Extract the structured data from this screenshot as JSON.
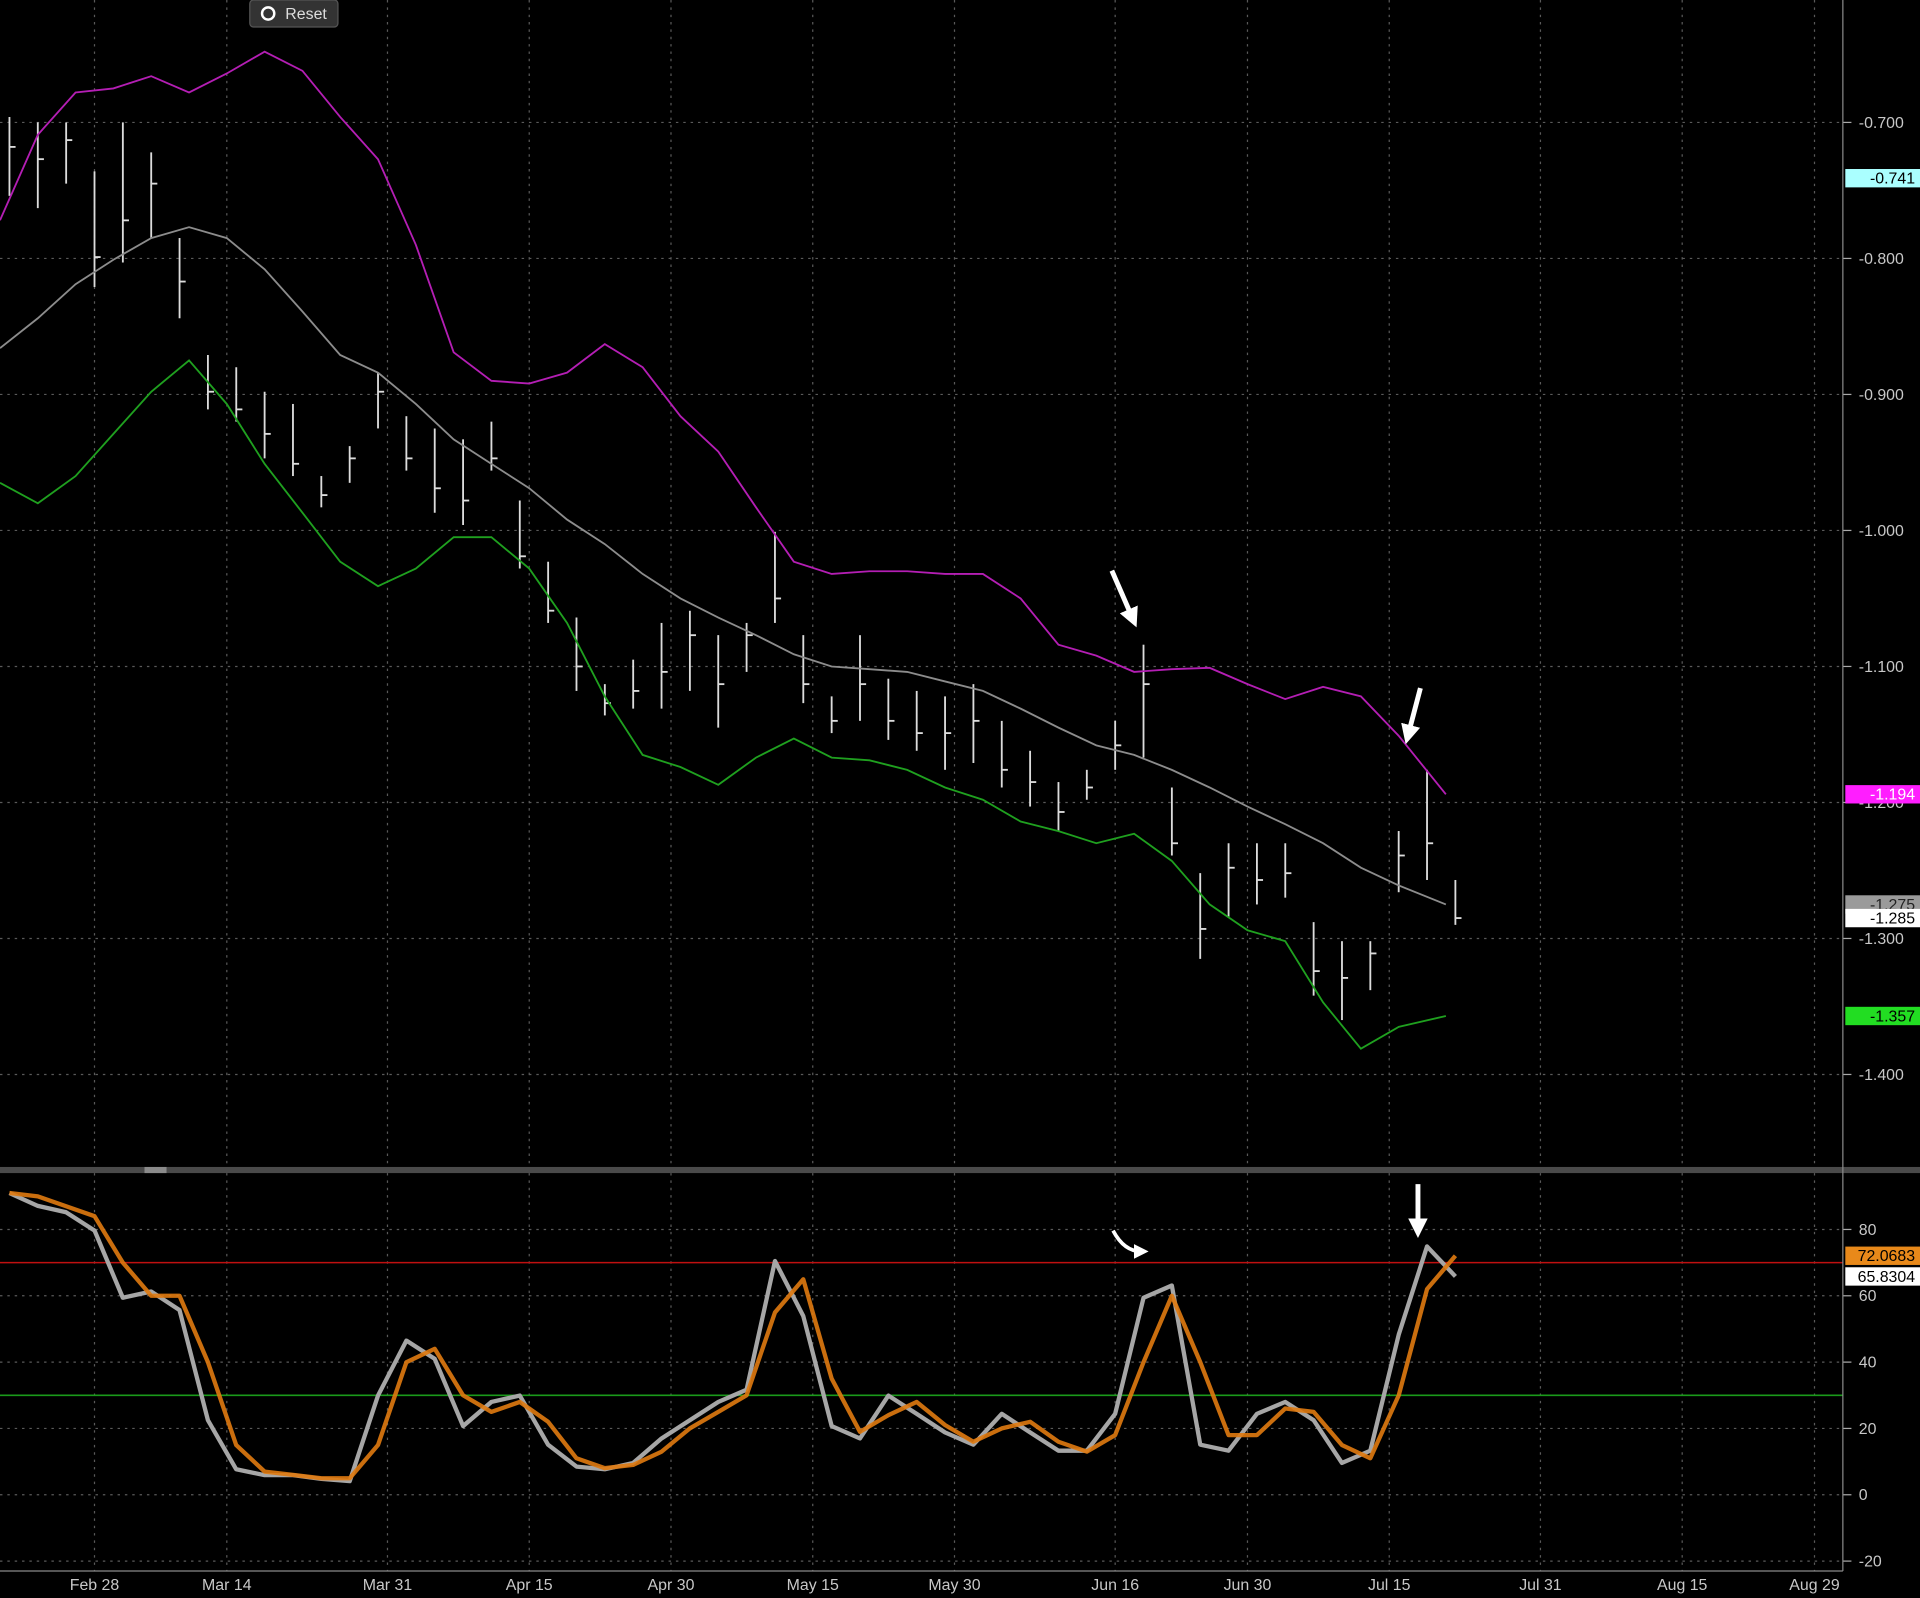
{
  "reset_button": "Reset",
  "chart_data": [
    {
      "type": "ohlc",
      "xlim": [
        "Feb 18",
        "Sep 1"
      ],
      "xticks": [
        "Feb 28",
        "Mar 14",
        "Mar 31",
        "Apr 15",
        "Apr 30",
        "May 15",
        "May 30",
        "Jun 16",
        "Jun 30",
        "Jul 15",
        "Jul 31",
        "Aug 15",
        "Aug 29"
      ],
      "ylim": [
        -1.468,
        -0.61
      ],
      "yticks": [
        {
          "value": -0.7,
          "label": "-0.700"
        },
        {
          "value": -0.8,
          "label": "-0.800"
        },
        {
          "value": -0.9,
          "label": "-0.900"
        },
        {
          "value": -1.0,
          "label": "-1.000"
        },
        {
          "value": -1.1,
          "label": "-1.100"
        },
        {
          "value": -1.2,
          "label": "-1.200"
        },
        {
          "value": -1.3,
          "label": "-1.300"
        },
        {
          "value": -1.4,
          "label": "-1.400"
        }
      ],
      "grid": true,
      "bars": {
        "color": "#dcdcdc",
        "x": [
          "Feb 19",
          "Feb 22",
          "Feb 25",
          "Feb 28",
          "Mar 3",
          "Mar 6",
          "Mar 9",
          "Mar 12",
          "Mar 15",
          "Mar 18",
          "Mar 21",
          "Mar 24",
          "Mar 27",
          "Mar 30",
          "Apr 2",
          "Apr 5",
          "Apr 8",
          "Apr 11",
          "Apr 14",
          "Apr 17",
          "Apr 20",
          "Apr 23",
          "Apr 26",
          "Apr 29",
          "May 2",
          "May 5",
          "May 8",
          "May 11",
          "May 14",
          "May 17",
          "May 20",
          "May 23",
          "May 26",
          "May 29",
          "Jun 1",
          "Jun 4",
          "Jun 7",
          "Jun 10",
          "Jun 13",
          "Jun 16",
          "Jun 19",
          "Jun 22",
          "Jun 25",
          "Jun 28",
          "Jul 1",
          "Jul 4",
          "Jul 7",
          "Jul 10",
          "Jul 13",
          "Jul 16",
          "Jul 19",
          "Jul 22"
        ],
        "high": [
          -0.696,
          -0.7,
          -0.7,
          -0.736,
          -0.7,
          -0.722,
          -0.785,
          -0.871,
          -0.88,
          -0.898,
          -0.907,
          -0.96,
          -0.938,
          -0.884,
          -0.916,
          -0.925,
          -0.933,
          -0.92,
          -0.978,
          -1.023,
          -1.064,
          -1.113,
          -1.095,
          -1.068,
          -1.059,
          -1.077,
          -1.068,
          -1.001,
          -1.077,
          -1.122,
          -1.077,
          -1.109,
          -1.118,
          -1.122,
          -1.113,
          -1.14,
          -1.162,
          -1.185,
          -1.176,
          -1.14,
          -1.084,
          -1.189,
          -1.252,
          -1.23,
          -1.23,
          -1.23,
          -1.288,
          -1.302,
          -1.302,
          -1.221,
          -1.176,
          -1.257
        ],
        "low": [
          -0.754,
          -0.763,
          -0.745,
          -0.821,
          -0.803,
          -0.785,
          -0.844,
          -0.911,
          -0.92,
          -0.947,
          -0.96,
          -0.983,
          -0.965,
          -0.925,
          -0.956,
          -0.987,
          -0.996,
          -0.956,
          -1.028,
          -1.068,
          -1.118,
          -1.136,
          -1.131,
          -1.131,
          -1.118,
          -1.145,
          -1.104,
          -1.068,
          -1.127,
          -1.149,
          -1.14,
          -1.154,
          -1.162,
          -1.176,
          -1.171,
          -1.189,
          -1.203,
          -1.221,
          -1.198,
          -1.176,
          -1.167,
          -1.239,
          -1.315,
          -1.284,
          -1.275,
          -1.27,
          -1.342,
          -1.36,
          -1.338,
          -1.266,
          -1.257,
          -1.29
        ],
        "close": [
          -0.718,
          -0.727,
          -0.713,
          -0.799,
          -0.772,
          -0.745,
          -0.817,
          -0.898,
          -0.911,
          -0.929,
          -0.951,
          -0.974,
          -0.947,
          -0.898,
          -0.947,
          -0.969,
          -0.978,
          -0.947,
          -1.019,
          -1.059,
          -1.1,
          -1.127,
          -1.118,
          -1.104,
          -1.077,
          -1.113,
          -1.077,
          -1.05,
          -1.113,
          -1.14,
          -1.113,
          -1.14,
          -1.149,
          -1.149,
          -1.14,
          -1.176,
          -1.185,
          -1.207,
          -1.189,
          -1.158,
          -1.113,
          -1.23,
          -1.293,
          -1.248,
          -1.257,
          -1.252,
          -1.324,
          -1.329,
          -1.311,
          -1.239,
          -1.23,
          -1.285
        ]
      },
      "bands": {
        "x": [
          "Feb 18",
          "Feb 22",
          "Feb 26",
          "Mar 2",
          "Mar 6",
          "Mar 10",
          "Mar 14",
          "Mar 18",
          "Mar 22",
          "Mar 26",
          "Mar 30",
          "Apr 3",
          "Apr 7",
          "Apr 11",
          "Apr 15",
          "Apr 19",
          "Apr 23",
          "Apr 27",
          "May 1",
          "May 5",
          "May 9",
          "May 13",
          "May 17",
          "May 21",
          "May 25",
          "May 29",
          "Jun 2",
          "Jun 6",
          "Jun 10",
          "Jun 14",
          "Jun 18",
          "Jun 22",
          "Jun 26",
          "Jun 30",
          "Jul 4",
          "Jul 8",
          "Jul 12",
          "Jul 16",
          "Jul 21"
        ],
        "series": [
          {
            "color": "#b41eb4",
            "values": [
              -0.772,
              -0.709,
              -0.678,
              -0.675,
              -0.666,
              -0.678,
              -0.664,
              -0.648,
              -0.662,
              -0.696,
              -0.727,
              -0.79,
              -0.869,
              -0.89,
              -0.892,
              -0.884,
              -0.863,
              -0.88,
              -0.916,
              -0.942,
              -0.983,
              -1.023,
              -1.032,
              -1.03,
              -1.03,
              -1.032,
              -1.032,
              -1.05,
              -1.084,
              -1.092,
              -1.104,
              -1.102,
              -1.101,
              -1.113,
              -1.124,
              -1.115,
              -1.122,
              -1.151,
              -1.194
            ]
          },
          {
            "color": "#8c8c8c",
            "values": [
              -0.866,
              -0.844,
              -0.819,
              -0.801,
              -0.785,
              -0.777,
              -0.785,
              -0.808,
              -0.839,
              -0.871,
              -0.884,
              -0.907,
              -0.933,
              -0.951,
              -0.969,
              -0.992,
              -1.01,
              -1.032,
              -1.05,
              -1.064,
              -1.077,
              -1.091,
              -1.1,
              -1.102,
              -1.104,
              -1.111,
              -1.118,
              -1.131,
              -1.145,
              -1.158,
              -1.165,
              -1.176,
              -1.189,
              -1.203,
              -1.216,
              -1.23,
              -1.248,
              -1.261,
              -1.275
            ]
          },
          {
            "color": "#1fa01f",
            "values": [
              -0.965,
              -0.98,
              -0.96,
              -0.929,
              -0.898,
              -0.875,
              -0.907,
              -0.951,
              -0.987,
              -1.023,
              -1.041,
              -1.028,
              -1.005,
              -1.005,
              -1.028,
              -1.068,
              -1.122,
              -1.165,
              -1.174,
              -1.187,
              -1.167,
              -1.153,
              -1.167,
              -1.169,
              -1.176,
              -1.189,
              -1.198,
              -1.214,
              -1.221,
              -1.23,
              -1.223,
              -1.243,
              -1.275,
              -1.294,
              -1.302,
              -1.347,
              -1.381,
              -1.365,
              -1.357
            ]
          }
        ]
      },
      "tags": [
        {
          "value": -0.741,
          "label": "-0.741",
          "color": "#aaffff",
          "text_color": "#000000"
        },
        {
          "value": -1.194,
          "label": "-1.194",
          "color": "#ff1eff",
          "text_color": "#ffffff"
        },
        {
          "value": -1.275,
          "label": "-1.275",
          "color": "#9a9a9a",
          "text_color": "#222222"
        },
        {
          "value": -1.285,
          "label": "-1.285",
          "color": "#ffffff",
          "text_color": "#000000"
        },
        {
          "value": -1.357,
          "label": "-1.357",
          "color": "#22dd22",
          "text_color": "#000000"
        }
      ]
    },
    {
      "type": "line",
      "x": [
        "Feb 19",
        "Feb 22",
        "Feb 25",
        "Feb 28",
        "Mar 3",
        "Mar 6",
        "Mar 9",
        "Mar 12",
        "Mar 15",
        "Mar 18",
        "Mar 21",
        "Mar 24",
        "Mar 27",
        "Mar 30",
        "Apr 2",
        "Apr 5",
        "Apr 8",
        "Apr 11",
        "Apr 14",
        "Apr 17",
        "Apr 20",
        "Apr 23",
        "Apr 26",
        "Apr 29",
        "May 2",
        "May 5",
        "May 8",
        "May 11",
        "May 14",
        "May 17",
        "May 20",
        "May 23",
        "May 26",
        "May 29",
        "Jun 1",
        "Jun 4",
        "Jun 7",
        "Jun 10",
        "Jun 13",
        "Jun 16",
        "Jun 19",
        "Jun 22",
        "Jun 25",
        "Jun 28",
        "Jul 1",
        "Jul 4",
        "Jul 7",
        "Jul 10",
        "Jul 13",
        "Jul 16",
        "Jul 19",
        "Jul 22"
      ],
      "ylim": [
        -23,
        97
      ],
      "yticks": [
        -20,
        0,
        20,
        40,
        60,
        80
      ],
      "grid": true,
      "series": [
        {
          "color": "#a6a6a6",
          "values": [
            91,
            87.1,
            85.2,
            79.7,
            59.4,
            61.3,
            55.7,
            22.5,
            7.7,
            5.9,
            5.9,
            4.8,
            4.1,
            29.9,
            46.5,
            41,
            20.7,
            28,
            29.9,
            15.1,
            8.5,
            7.7,
            9.6,
            17,
            22.5,
            28,
            31.7,
            70.5,
            53.9,
            20.7,
            17,
            29.9,
            24.4,
            18.8,
            15.1,
            24.4,
            18.8,
            13.3,
            13.3,
            24.4,
            59.4,
            63.1,
            15.1,
            13.3,
            24.4,
            28,
            22.5,
            9.6,
            13.3,
            48.3,
            74.9,
            65.8304
          ]
        },
        {
          "color": "#e07a10",
          "values": [
            91,
            90,
            87,
            84,
            70,
            60,
            60,
            40,
            15,
            7,
            6,
            5,
            5,
            15,
            40,
            44,
            30,
            25,
            28,
            22,
            11,
            8,
            9,
            13,
            20,
            25,
            30,
            55,
            65,
            35,
            19,
            24,
            28,
            21,
            16,
            20,
            22,
            16,
            13,
            18,
            40,
            60,
            40,
            18,
            18,
            26,
            25,
            15,
            11,
            30,
            62,
            72.0683
          ]
        }
      ],
      "hlines": [
        {
          "value": 70,
          "color": "#c01010"
        },
        {
          "value": 30,
          "color": "#1a9a1a"
        }
      ],
      "tags": [
        {
          "value": 72.0683,
          "label": "72.0683",
          "color": "#e8891a",
          "text_color": "#000000"
        },
        {
          "value": 65.8304,
          "label": "65.8304",
          "color": "#ffffff",
          "text_color": "#000000"
        }
      ]
    }
  ]
}
